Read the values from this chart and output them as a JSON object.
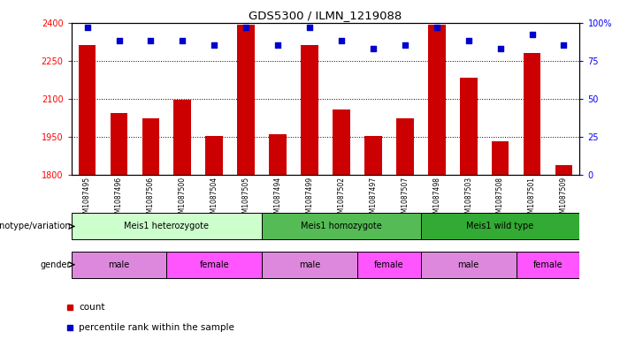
{
  "title": "GDS5300 / ILMN_1219088",
  "samples": [
    "GSM1087495",
    "GSM1087496",
    "GSM1087506",
    "GSM1087500",
    "GSM1087504",
    "GSM1087505",
    "GSM1087494",
    "GSM1087499",
    "GSM1087502",
    "GSM1087497",
    "GSM1087507",
    "GSM1087498",
    "GSM1087503",
    "GSM1087508",
    "GSM1087501",
    "GSM1087509"
  ],
  "bar_values": [
    2310,
    2045,
    2022,
    2095,
    1955,
    2390,
    1960,
    2310,
    2060,
    1955,
    2025,
    2390,
    2185,
    1935,
    2280,
    1840
  ],
  "percentile_values": [
    97,
    88,
    88,
    88,
    85,
    97,
    85,
    97,
    88,
    83,
    85,
    97,
    88,
    83,
    92,
    85
  ],
  "ylim": [
    1800,
    2400
  ],
  "yticks": [
    1800,
    1950,
    2100,
    2250,
    2400
  ],
  "right_yticks": [
    0,
    25,
    50,
    75,
    100
  ],
  "right_tick_labels": [
    "0",
    "25",
    "50",
    "75",
    "100%"
  ],
  "bar_color": "#cc0000",
  "percentile_color": "#0000cc",
  "background_color": "#ffffff",
  "genotype_groups": [
    {
      "label": "Meis1 heterozygote",
      "start": 0,
      "end": 5,
      "color": "#ccffcc"
    },
    {
      "label": "Meis1 homozygote",
      "start": 6,
      "end": 10,
      "color": "#55bb55"
    },
    {
      "label": "Meis1 wild type",
      "start": 11,
      "end": 15,
      "color": "#33aa33"
    }
  ],
  "gender_groups": [
    {
      "label": "male",
      "start": 0,
      "end": 2,
      "color": "#dd88dd"
    },
    {
      "label": "female",
      "start": 3,
      "end": 5,
      "color": "#ff55ff"
    },
    {
      "label": "male",
      "start": 6,
      "end": 8,
      "color": "#dd88dd"
    },
    {
      "label": "female",
      "start": 9,
      "end": 10,
      "color": "#ff55ff"
    },
    {
      "label": "male",
      "start": 11,
      "end": 13,
      "color": "#dd88dd"
    },
    {
      "label": "female",
      "start": 14,
      "end": 15,
      "color": "#ff55ff"
    }
  ],
  "legend_count_label": "count",
  "legend_pct_label": "percentile rank within the sample"
}
